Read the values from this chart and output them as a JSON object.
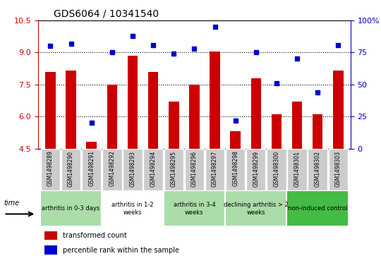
{
  "title": "GDS6064 / 10341540",
  "samples": [
    "GSM1498289",
    "GSM1498290",
    "GSM1498291",
    "GSM1498292",
    "GSM1498293",
    "GSM1498294",
    "GSM1498295",
    "GSM1498296",
    "GSM1498297",
    "GSM1498298",
    "GSM1498299",
    "GSM1498300",
    "GSM1498301",
    "GSM1498302",
    "GSM1498303"
  ],
  "bar_values": [
    8.1,
    8.15,
    4.8,
    7.5,
    8.85,
    8.1,
    6.7,
    7.5,
    9.05,
    5.3,
    7.8,
    6.1,
    6.7,
    6.1,
    8.15
  ],
  "dot_values": [
    80,
    82,
    20,
    75,
    88,
    81,
    74,
    78,
    95,
    22,
    75,
    51,
    70,
    44,
    81
  ],
  "ylim_left": [
    4.5,
    10.5
  ],
  "ylim_right": [
    0,
    100
  ],
  "yticks_left": [
    4.5,
    6.0,
    7.5,
    9.0,
    10.5
  ],
  "yticks_right": [
    0,
    25,
    50,
    75,
    100
  ],
  "ytick_labels_right": [
    "0",
    "25",
    "50",
    "75",
    "100%"
  ],
  "bar_color": "#cc0000",
  "dot_color": "#0000cc",
  "groups": [
    {
      "label": "arthritis in 0-3 days",
      "start": 0,
      "end": 3,
      "color": "#ccffcc"
    },
    {
      "label": "arthritis in 1-2\nweeks",
      "start": 3,
      "end": 6,
      "color": "#ffffff"
    },
    {
      "label": "arthritis in 3-4\nweeks",
      "start": 6,
      "end": 9,
      "color": "#ccffcc"
    },
    {
      "label": "declining arthritis > 2\nweeks",
      "start": 9,
      "end": 12,
      "color": "#ccffcc"
    },
    {
      "label": "non-induced control",
      "start": 12,
      "end": 15,
      "color": "#33cc33"
    }
  ],
  "grid_color": "#000000",
  "background_color": "#dddddd",
  "xlabel": "time",
  "legend_bar_label": "transformed count",
  "legend_dot_label": "percentile rank within the sample"
}
